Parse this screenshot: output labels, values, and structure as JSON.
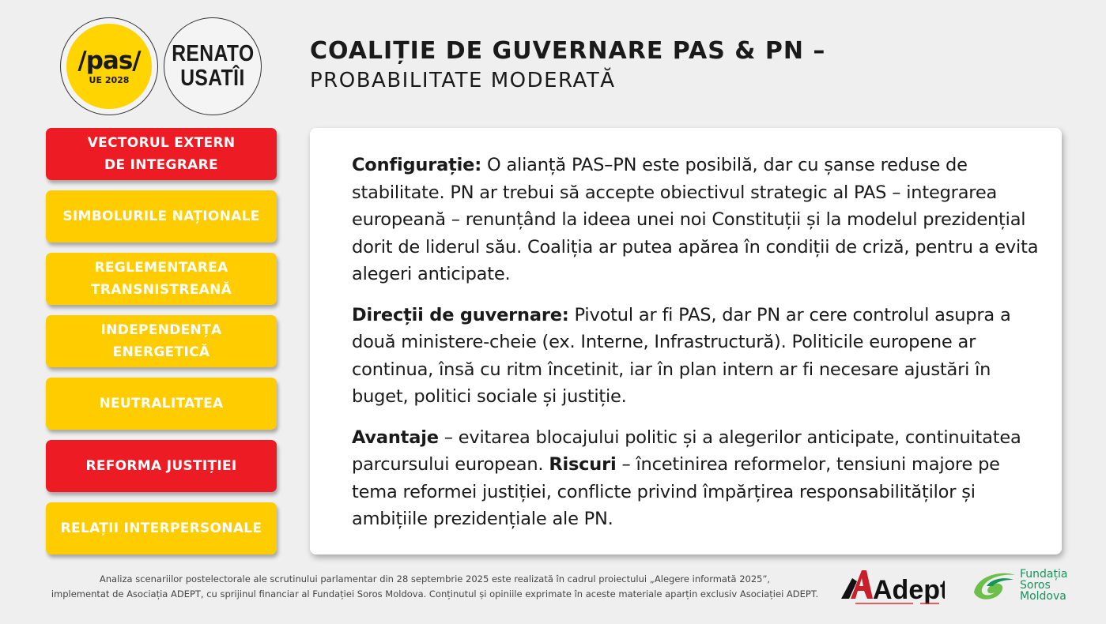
{
  "logos": {
    "pas": {
      "word": "/pas/",
      "sub": "UE 2028"
    },
    "candidate": {
      "line1": "RENATO",
      "line2": "USATÎI"
    },
    "adept": "Adept",
    "soros": {
      "line1": "Fundația",
      "line2": "Soros",
      "line3": "Moldova"
    }
  },
  "header": {
    "title": "COALIȚIE DE GUVERNARE PAS & PN –",
    "subtitle": "PROBABILITATE MODERATĂ"
  },
  "colors": {
    "red": "#ed1c24",
    "yellow": "#ffcc00",
    "soros_green": "#16935a"
  },
  "sidebar": {
    "items": [
      {
        "label": "VECTORUL EXTERN\nDE INTEGRARE",
        "color": "red"
      },
      {
        "label": "SIMBOLURILE NAȚIONALE",
        "color": "yellow"
      },
      {
        "label": "REGLEMENTAREA\nTRANSNISTREANĂ",
        "color": "yellow"
      },
      {
        "label": "INDEPENDENȚA\nENERGETICĂ",
        "color": "yellow"
      },
      {
        "label": "NEUTRALITATEA",
        "color": "yellow"
      },
      {
        "label": "REFORMA JUSTIȚIEI",
        "color": "red"
      },
      {
        "label": "RELAȚII INTERPERSONALE",
        "color": "yellow"
      }
    ]
  },
  "content": {
    "p1_label": "Configurație:",
    "p1_text": " O alianță PAS–PN este posibilă, dar cu șanse reduse de stabilitate. PN ar trebui să accepte obiectivul strategic al PAS – integrarea europeană – renunțând la ideea unei noi Constituții și la modelul prezidențial dorit de liderul său. Coaliția ar putea apărea în condiții de criză, pentru a evita alegeri anticipate.",
    "p2_label": "Direcții de guvernare:",
    "p2_text": " Pivotul ar fi PAS, dar PN ar cere controlul asupra a două ministere-cheie (ex. Interne, Infrastructură). Politicile europene ar continua, însă cu ritm încetinit, iar în plan intern ar fi necesare ajustări în buget, politici sociale și justiție.",
    "p3_label": "Avantaje",
    "p3_text": " – evitarea blocajului politic și a alegerilor anticipate, continuitatea parcursului european. ",
    "p3_label2": "Riscuri",
    "p3_text2": " – încetinirea reformelor, tensiuni majore pe tema reformei justiției, conflicte privind împărțirea responsabilităților și ambițiile prezidențiale ale PN."
  },
  "footer": {
    "line1": "Analiza scenariilor postelectorale ale scrutinului parlamentar din 28 septembrie 2025 este realizată în cadrul proiectului „Alegere informată 2025”,",
    "line2": "implementat de Asociația ADEPT, cu sprijinul financiar al Fundației Soros Moldova. Conținutul și opiniile exprimate în aceste materiale aparțin exclusiv Asociației ADEPT."
  }
}
